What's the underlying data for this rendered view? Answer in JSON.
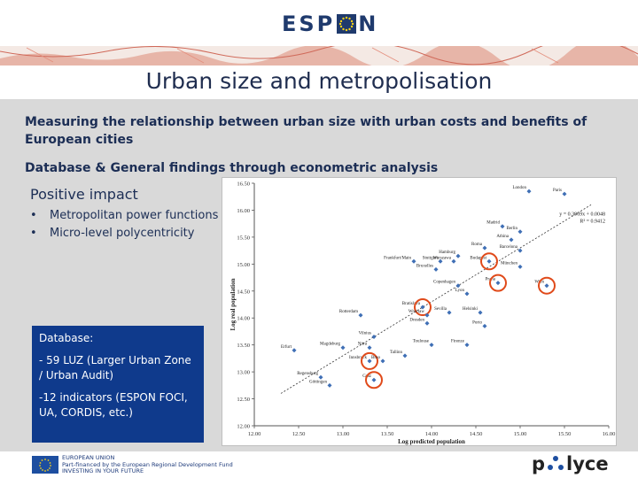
{
  "header": {
    "logo_left": "ESP",
    "logo_right": "N"
  },
  "slide_title": "Urban size and metropolisation",
  "paragraphs": {
    "p1": "Measuring the relationship between urban size with urban costs and benefits of European cities",
    "p2": "Database & General findings through econometric analysis"
  },
  "positive": {
    "title": "Positive impact",
    "items": [
      "Metropolitan power functions",
      "Micro-level polycentricity"
    ]
  },
  "database_box": {
    "title": "Database:",
    "item1": "- 59 LUZ (Larger Urban Zone / Urban Audit)",
    "item2": "-12 indicators (ESPON FOCI, UA, CORDIS, etc.)"
  },
  "chart_data": {
    "type": "scatter",
    "xlabel": "Log predicted population",
    "ylabel": "Log real population",
    "xlim": [
      12.0,
      16.0
    ],
    "ylim": [
      12.0,
      16.5
    ],
    "xticks": [
      "12.00",
      "12.50",
      "13.00",
      "13.50",
      "14.00",
      "14.50",
      "15.00",
      "15.50",
      "16.00"
    ],
    "yticks": [
      "16.50",
      "16.00",
      "15.50",
      "15.00",
      "14.50",
      "14.00",
      "13.50",
      "13.00",
      "12.50",
      "12.00"
    ],
    "equation": "y = 0.3969x + 0.0048",
    "r2": "R² = 0.9412",
    "points": [
      {
        "label": "London",
        "x": 15.1,
        "y": 16.35
      },
      {
        "label": "Paris",
        "x": 15.5,
        "y": 16.3
      },
      {
        "label": "Madrid",
        "x": 14.8,
        "y": 15.7
      },
      {
        "label": "Berlin",
        "x": 15.0,
        "y": 15.6
      },
      {
        "label": "Athina",
        "x": 14.9,
        "y": 15.45
      },
      {
        "label": "Roma",
        "x": 14.6,
        "y": 15.3
      },
      {
        "label": "Barcelona",
        "x": 15.0,
        "y": 15.25
      },
      {
        "label": "Hamburg",
        "x": 14.3,
        "y": 15.15
      },
      {
        "label": "Warszawa",
        "x": 14.25,
        "y": 15.05
      },
      {
        "label": "Frankfurt/Main",
        "x": 13.8,
        "y": 15.05
      },
      {
        "label": "Stuttgart",
        "x": 14.1,
        "y": 15.05
      },
      {
        "label": "Budapest",
        "x": 14.65,
        "y": 15.05
      },
      {
        "label": "München",
        "x": 15.0,
        "y": 14.95
      },
      {
        "label": "Bruxelles",
        "x": 14.05,
        "y": 14.9
      },
      {
        "label": "Praha",
        "x": 14.75,
        "y": 14.65
      },
      {
        "label": "Wien",
        "x": 15.3,
        "y": 14.6
      },
      {
        "label": "Copenhagen",
        "x": 14.3,
        "y": 14.6
      },
      {
        "label": "Lyon",
        "x": 14.4,
        "y": 14.45
      },
      {
        "label": "Bratislava",
        "x": 13.9,
        "y": 14.2
      },
      {
        "label": "Sevilla",
        "x": 14.2,
        "y": 14.1
      },
      {
        "label": "Helsinki",
        "x": 14.55,
        "y": 14.1
      },
      {
        "label": "Rotterdam",
        "x": 13.2,
        "y": 14.05
      },
      {
        "label": "Wroclaw",
        "x": 13.95,
        "y": 14.05
      },
      {
        "label": "Dresden",
        "x": 13.95,
        "y": 13.9
      },
      {
        "label": "Porto",
        "x": 14.6,
        "y": 13.85
      },
      {
        "label": "Vilnius",
        "x": 13.35,
        "y": 13.65
      },
      {
        "label": "Toulouse",
        "x": 14.0,
        "y": 13.5
      },
      {
        "label": "Firenze",
        "x": 14.4,
        "y": 13.5
      },
      {
        "label": "Erfurt",
        "x": 12.45,
        "y": 13.4
      },
      {
        "label": "Magdeburg",
        "x": 13.0,
        "y": 13.45
      },
      {
        "label": "Nitra",
        "x": 13.3,
        "y": 13.45
      },
      {
        "label": "Tallinn",
        "x": 13.7,
        "y": 13.3
      },
      {
        "label": "Innsbruck",
        "x": 13.3,
        "y": 13.2
      },
      {
        "label": "Brno",
        "x": 13.45,
        "y": 13.2
      },
      {
        "label": "Graz",
        "x": 13.35,
        "y": 12.85
      },
      {
        "label": "Regensburg",
        "x": 12.75,
        "y": 12.9
      },
      {
        "label": "Göttingen",
        "x": 12.85,
        "y": 12.75
      }
    ],
    "highlighted": [
      "Budapest",
      "Wien",
      "Praha",
      "Bratislava",
      "Innsbruck",
      "Graz"
    ]
  },
  "footer": {
    "eu_line1": "EUROPEAN UNION",
    "eu_line2": "Part-financed by the European Regional Development Fund",
    "eu_line3": "INVESTING IN YOUR FUTURE",
    "brand_left": "p",
    "brand_right": "lyce"
  }
}
